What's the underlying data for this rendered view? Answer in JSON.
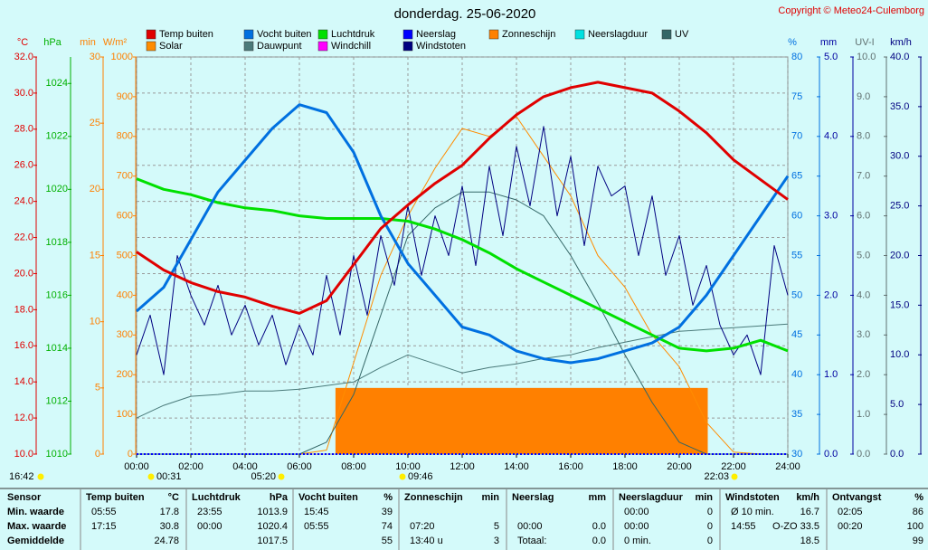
{
  "chart_data": {
    "type": "line",
    "title": "donderdag. 25-06-2020",
    "copyright": "Copyright © Meteo24-Culemborg",
    "xlim": [
      0,
      24
    ],
    "xticks": [
      {
        "value": 0,
        "label": "00:00"
      },
      {
        "value": 2,
        "label": "02:00"
      },
      {
        "value": 4,
        "label": "04:00"
      },
      {
        "value": 6,
        "label": "06:00"
      },
      {
        "value": 8,
        "label": "08:00"
      },
      {
        "value": 10,
        "label": "10:00"
      },
      {
        "value": 12,
        "label": "12:00"
      },
      {
        "value": 14,
        "label": "14:00"
      },
      {
        "value": 16,
        "label": "16:00"
      },
      {
        "value": 18,
        "label": "18:00"
      },
      {
        "value": 20,
        "label": "20:00"
      },
      {
        "value": 22,
        "label": "22:00"
      },
      {
        "value": 24,
        "label": "24:00"
      }
    ],
    "grid": true,
    "axes": [
      {
        "title": "°C",
        "color": "#e00000",
        "lim": [
          10,
          32
        ],
        "ticks": [
          {
            "value": 10,
            "label": "10.0"
          },
          {
            "value": 12,
            "label": "12.0"
          },
          {
            "value": 14,
            "label": "14.0"
          },
          {
            "value": 16,
            "label": "16.0"
          },
          {
            "value": 18,
            "label": "18.0"
          },
          {
            "value": 20,
            "label": "20.0"
          },
          {
            "value": 22,
            "label": "22.0"
          },
          {
            "value": 24,
            "label": "24.0"
          },
          {
            "value": 26,
            "label": "26.0"
          },
          {
            "value": 28,
            "label": "28.0"
          },
          {
            "value": 30,
            "label": "30.0"
          },
          {
            "value": 32,
            "label": "32.0"
          }
        ]
      },
      {
        "title": "hPa",
        "color": "#00b000",
        "lim": [
          1010,
          1025
        ],
        "ticks": [
          1010,
          1012,
          1014,
          1016,
          1018,
          1020,
          1022,
          1024
        ]
      },
      {
        "title": "min",
        "color": "#ff8000",
        "lim": [
          0,
          30
        ],
        "ticks": [
          0,
          5,
          10,
          15,
          20,
          25,
          30
        ]
      },
      {
        "title": "W/m²",
        "color": "#ff8000",
        "lim": [
          0,
          1000
        ],
        "ticks": [
          0,
          100,
          200,
          300,
          400,
          500,
          600,
          700,
          800,
          900,
          1000
        ]
      },
      {
        "title": "%",
        "color": "#0070e0",
        "lim": [
          30,
          80
        ],
        "ticks": [
          30,
          35,
          40,
          45,
          50,
          55,
          60,
          65,
          70,
          75,
          80
        ]
      },
      {
        "title": "mm",
        "color": "#0000a0",
        "lim": [
          0,
          5
        ],
        "ticks": [
          {
            "value": 0,
            "label": "0.0"
          },
          {
            "value": 1,
            "label": "1.0"
          },
          {
            "value": 2,
            "label": "2.0"
          },
          {
            "value": 3,
            "label": "3.0"
          },
          {
            "value": 4,
            "label": "4.0"
          },
          {
            "value": 5,
            "label": "5.0"
          }
        ]
      },
      {
        "title": "UV-I",
        "color": "#607070",
        "lim": [
          0,
          10
        ],
        "ticks": [
          {
            "value": 0,
            "label": "0.0"
          },
          {
            "value": 1,
            "label": "1.0"
          },
          {
            "value": 2,
            "label": "2.0"
          },
          {
            "value": 3,
            "label": "3.0"
          },
          {
            "value": 4,
            "label": "4.0"
          },
          {
            "value": 5,
            "label": "5.0"
          },
          {
            "value": 6,
            "label": "6.0"
          },
          {
            "value": 7,
            "label": "7.0"
          },
          {
            "value": 8,
            "label": "8.0"
          },
          {
            "value": 9,
            "label": "9.0"
          },
          {
            "value": 10,
            "label": "10.0"
          }
        ]
      },
      {
        "title": "km/h",
        "color": "#000080",
        "lim": [
          0,
          40
        ],
        "ticks": [
          {
            "value": 0,
            "label": "0.0"
          },
          {
            "value": 5,
            "label": "5.0"
          },
          {
            "value": 10,
            "label": "10.0"
          },
          {
            "value": 15,
            "label": "15.0"
          },
          {
            "value": 20,
            "label": "20.0"
          },
          {
            "value": 25,
            "label": "25.0"
          },
          {
            "value": 30,
            "label": "30.0"
          },
          {
            "value": 35,
            "label": "35.0"
          },
          {
            "value": 40,
            "label": "40.0"
          }
        ]
      }
    ],
    "x": [
      0,
      1,
      2,
      3,
      4,
      5,
      6,
      7,
      8,
      9,
      10,
      11,
      12,
      13,
      14,
      15,
      16,
      17,
      18,
      19,
      20,
      21,
      22,
      23,
      24
    ],
    "series": [
      {
        "name": "Temp buiten",
        "color": "#e00000",
        "axis": "°C",
        "line_width": 3,
        "values": [
          21.2,
          20.2,
          19.5,
          19.0,
          18.7,
          18.2,
          17.8,
          18.5,
          20.5,
          22.5,
          23.8,
          25.0,
          26.0,
          27.5,
          28.8,
          29.8,
          30.3,
          30.6,
          30.3,
          30.0,
          29.0,
          27.8,
          26.3,
          25.2,
          24.1
        ]
      },
      {
        "name": "Solar",
        "color": "#ff8c00",
        "axis": "W/m²",
        "line_width": 1,
        "values": [
          0,
          0,
          0,
          0,
          0,
          0,
          0,
          10,
          230,
          450,
          600,
          720,
          820,
          800,
          850,
          750,
          650,
          500,
          420,
          300,
          220,
          80,
          5,
          0,
          0
        ]
      },
      {
        "name": "Vocht buiten",
        "color": "#0070e0",
        "axis": "%",
        "line_width": 3,
        "values": [
          48,
          51,
          57,
          63,
          67,
          71,
          74,
          73,
          68,
          60,
          54,
          50,
          46,
          45,
          43,
          42,
          41.5,
          42,
          43,
          44,
          46,
          50,
          55,
          60,
          65
        ]
      },
      {
        "name": "Dauwpunt",
        "color": "#4a7a7a",
        "axis": "°C",
        "line_width": 1,
        "values": [
          12.0,
          12.7,
          13.2,
          13.3,
          13.5,
          13.5,
          13.6,
          13.8,
          14.0,
          14.8,
          15.5,
          15.0,
          14.5,
          14.8,
          15.0,
          15.3,
          15.5,
          15.9,
          16.2,
          16.5,
          16.8,
          16.9,
          17.0,
          17.1,
          17.2
        ]
      },
      {
        "name": "Luchtdruk",
        "color": "#00e000",
        "axis": "hPa",
        "line_width": 3,
        "values": [
          1020.4,
          1020.0,
          1019.8,
          1019.5,
          1019.3,
          1019.2,
          1019.0,
          1018.9,
          1018.9,
          1018.9,
          1018.8,
          1018.5,
          1018.1,
          1017.6,
          1017.0,
          1016.5,
          1016.0,
          1015.5,
          1015.0,
          1014.5,
          1014.0,
          1013.9,
          1014.0,
          1014.3,
          1013.9
        ]
      },
      {
        "name": "Windchill",
        "color": "#ff00ff",
        "axis": "°C"
      },
      {
        "name": "Neerslag",
        "color": "#0000ff",
        "axis": "mm",
        "line_width": 2,
        "dashed": true,
        "values": [
          0,
          0,
          0,
          0,
          0,
          0,
          0,
          0,
          0,
          0,
          0,
          0,
          0,
          0,
          0,
          0,
          0,
          0,
          0,
          0,
          0,
          0,
          0,
          0,
          0
        ]
      },
      {
        "name": "Windstoten",
        "color": "#000080",
        "axis": "km/h",
        "line_width": 1,
        "x": [
          0,
          0.5,
          1,
          1.5,
          2,
          2.5,
          3,
          3.5,
          4,
          4.5,
          5,
          5.5,
          6,
          6.5,
          7,
          7.5,
          8,
          8.5,
          9,
          9.5,
          10,
          10.5,
          11,
          11.5,
          12,
          12.5,
          13,
          13.5,
          14,
          14.5,
          15,
          15.5,
          16,
          16.5,
          17,
          17.5,
          18,
          18.5,
          19,
          19.5,
          20,
          20.5,
          21,
          21.5,
          22,
          22.5,
          23,
          23.5,
          24
        ],
        "values": [
          10,
          14,
          8,
          20,
          16,
          13,
          17,
          12,
          15,
          11,
          14,
          9,
          13,
          10,
          18,
          12,
          20,
          14,
          22,
          17,
          25,
          18,
          24,
          20,
          27,
          19,
          29,
          22,
          31,
          25,
          33,
          24,
          30,
          21,
          29,
          26,
          27,
          20,
          26,
          18,
          22,
          15,
          19,
          13,
          10,
          12,
          8,
          21,
          16
        ]
      },
      {
        "name": "Zonneschijn",
        "color": "#ff8000",
        "axis": "min",
        "fill": true,
        "x": [
          7.33,
          21.05
        ],
        "values": [
          5,
          5
        ]
      },
      {
        "name": "Neerslagduur",
        "color": "#00e0e0",
        "axis": "min"
      },
      {
        "name": "UV",
        "color": "#336666",
        "axis": "UV-I",
        "line_width": 1,
        "values": [
          0,
          0,
          0,
          0,
          0,
          0,
          0,
          0.3,
          1.5,
          3.5,
          5.5,
          6.2,
          6.6,
          6.6,
          6.4,
          6.0,
          5.0,
          3.8,
          2.5,
          1.3,
          0.3,
          0,
          0,
          0,
          0
        ]
      }
    ],
    "time_markers": [
      "16:42",
      "00:31",
      "05:20",
      "09:46",
      "22:03"
    ]
  },
  "table": {
    "columns": [
      {
        "name": "Sensor"
      },
      {
        "name": "Temp buiten",
        "unit": "°C"
      },
      {
        "name": "Luchtdruk",
        "unit": "hPa"
      },
      {
        "name": "Vocht buiten",
        "unit": "%"
      },
      {
        "name": "Zonneschijn",
        "unit": "min"
      },
      {
        "name": "Neerslag",
        "unit": "mm"
      },
      {
        "name": "Neerslagduur",
        "unit": "min"
      },
      {
        "name": "Windstoten",
        "unit": "km/h"
      },
      {
        "name": "Ontvangst",
        "unit": "%"
      }
    ],
    "rows": [
      {
        "label": "Min. waarde",
        "cells": [
          {
            "left": "05:55",
            "right": "17.8"
          },
          {
            "left": "23:55",
            "right": "1013.9"
          },
          {
            "left": "15:45",
            "right": "39"
          },
          null,
          null,
          {
            "left": "00:00",
            "right": "0"
          },
          {
            "left": "Ø 10 min.",
            "right": "16.7"
          },
          {
            "left": "02:05",
            "right": "86"
          }
        ]
      },
      {
        "label": "Max. waarde",
        "cells": [
          {
            "left": "17:15",
            "right": "30.8"
          },
          {
            "left": "00:00",
            "right": "1020.4"
          },
          {
            "left": "05:55",
            "right": "74"
          },
          {
            "left": "07:20",
            "right": "5"
          },
          {
            "left": "00:00",
            "right": "0.0"
          },
          {
            "left": "00:00",
            "right": "0"
          },
          {
            "left": "14:55",
            "right": "O-ZO 33.5"
          },
          {
            "left": "00:20",
            "right": "100"
          }
        ]
      },
      {
        "label": "Gemiddelde",
        "cells": [
          {
            "right": "24.78"
          },
          {
            "right": "1017.5"
          },
          {
            "right": "55"
          },
          {
            "left": "13:40 u",
            "right": "3"
          },
          {
            "left": "Totaal:",
            "right": "0.0"
          },
          {
            "left": "0 min.",
            "right": "0"
          },
          {
            "right": "18.5"
          },
          {
            "right": "99"
          }
        ]
      }
    ]
  }
}
